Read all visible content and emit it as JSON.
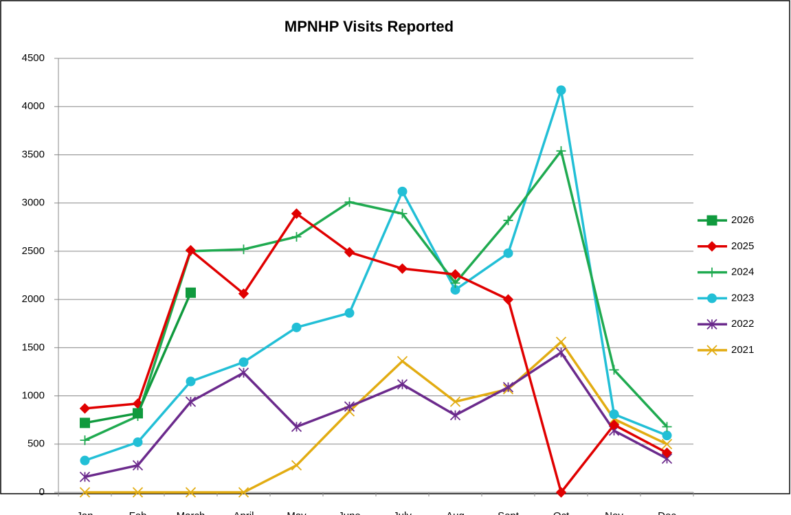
{
  "chart_data": {
    "type": "line",
    "title": "MPNHP Visits Reported",
    "categories": [
      "Jan",
      "Feb",
      "March",
      "April",
      "May",
      "June",
      "July",
      "Aug",
      "Sept",
      "Oct",
      "Nov",
      "Dec"
    ],
    "series": [
      {
        "name": "2026",
        "color": "#109a3e",
        "marker": "square",
        "values": [
          720,
          820,
          2070,
          null,
          null,
          null,
          null,
          null,
          null,
          null,
          null,
          null
        ]
      },
      {
        "name": "2025",
        "color": "#e00000",
        "marker": "diamond",
        "values": [
          870,
          920,
          2510,
          2060,
          2890,
          2490,
          2320,
          2260,
          2000,
          0,
          700,
          410
        ]
      },
      {
        "name": "2024",
        "color": "#1faa50",
        "marker": "plus",
        "values": [
          540,
          790,
          2500,
          2520,
          2650,
          3010,
          2890,
          2170,
          2820,
          3540,
          1270,
          680
        ]
      },
      {
        "name": "2023",
        "color": "#22bfd6",
        "marker": "circle",
        "values": [
          330,
          520,
          1150,
          1350,
          1710,
          1860,
          3120,
          2100,
          2480,
          4170,
          810,
          590
        ]
      },
      {
        "name": "2022",
        "color": "#6b2a8c",
        "marker": "star",
        "values": [
          160,
          280,
          940,
          1240,
          680,
          890,
          1120,
          800,
          1090,
          1450,
          640,
          350
        ]
      },
      {
        "name": "2021",
        "color": "#e2ac12",
        "marker": "x",
        "values": [
          0,
          0,
          0,
          0,
          280,
          840,
          1360,
          940,
          1070,
          1560,
          760,
          500
        ]
      }
    ],
    "ylim": [
      0,
      4500
    ],
    "yticks": [
      0,
      500,
      1000,
      1500,
      2000,
      2500,
      3000,
      3500,
      4000,
      4500
    ],
    "grid": true,
    "legend": "right"
  }
}
